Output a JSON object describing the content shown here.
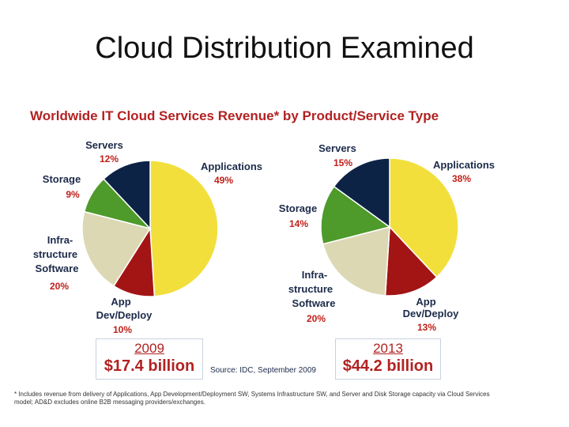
{
  "slide": {
    "title": "Cloud Distribution Examined"
  },
  "chart_data": [
    {
      "type": "pie",
      "title": "Worldwide IT Cloud Services Revenue* by Product/Service Type",
      "year": "2009",
      "total": "$17.4 billion",
      "slices": [
        {
          "label": "Applications",
          "value": 49,
          "pct_label": "49%",
          "color": "#f2df3c"
        },
        {
          "label": "App Dev/Deploy",
          "value": 10,
          "pct_label": "10%",
          "color": "#a31414"
        },
        {
          "label": "Infra-structure Software",
          "value": 20,
          "pct_label": "20%",
          "color": "#ddd8b4"
        },
        {
          "label": "Storage",
          "value": 9,
          "pct_label": "9%",
          "color": "#4e9a2a"
        },
        {
          "label": "Servers",
          "value": 12,
          "pct_label": "12%",
          "color": "#0d2346"
        }
      ]
    },
    {
      "type": "pie",
      "year": "2013",
      "total": "$44.2 billion",
      "slices": [
        {
          "label": "Applications",
          "value": 38,
          "pct_label": "38%",
          "color": "#f2df3c"
        },
        {
          "label": "App Dev/Deploy",
          "value": 13,
          "pct_label": "13%",
          "color": "#a31414"
        },
        {
          "label": "Infra-structure Software",
          "value": 20,
          "pct_label": "20%",
          "color": "#ddd8b4"
        },
        {
          "label": "Storage",
          "value": 14,
          "pct_label": "14%",
          "color": "#4e9a2a"
        },
        {
          "label": "Servers",
          "value": 15,
          "pct_label": "15%",
          "color": "#0d2346"
        }
      ]
    }
  ],
  "labels": {
    "servers": "Servers",
    "applications": "Applications",
    "storage": "Storage",
    "infra_line1": "Infra-",
    "infra_line2": "structure",
    "infra_line3": "Software",
    "appdev_line1": "App",
    "appdev_line2": "Dev/Deploy"
  },
  "source": "Source: IDC, September 2009",
  "footnote": "* Includes revenue from delivery of Applications, App Development/Deployment SW, Systems Infrastructure SW, and Server and Disk Storage capacity via Cloud Services model; AD&D excludes online B2B messaging providers/exchanges."
}
